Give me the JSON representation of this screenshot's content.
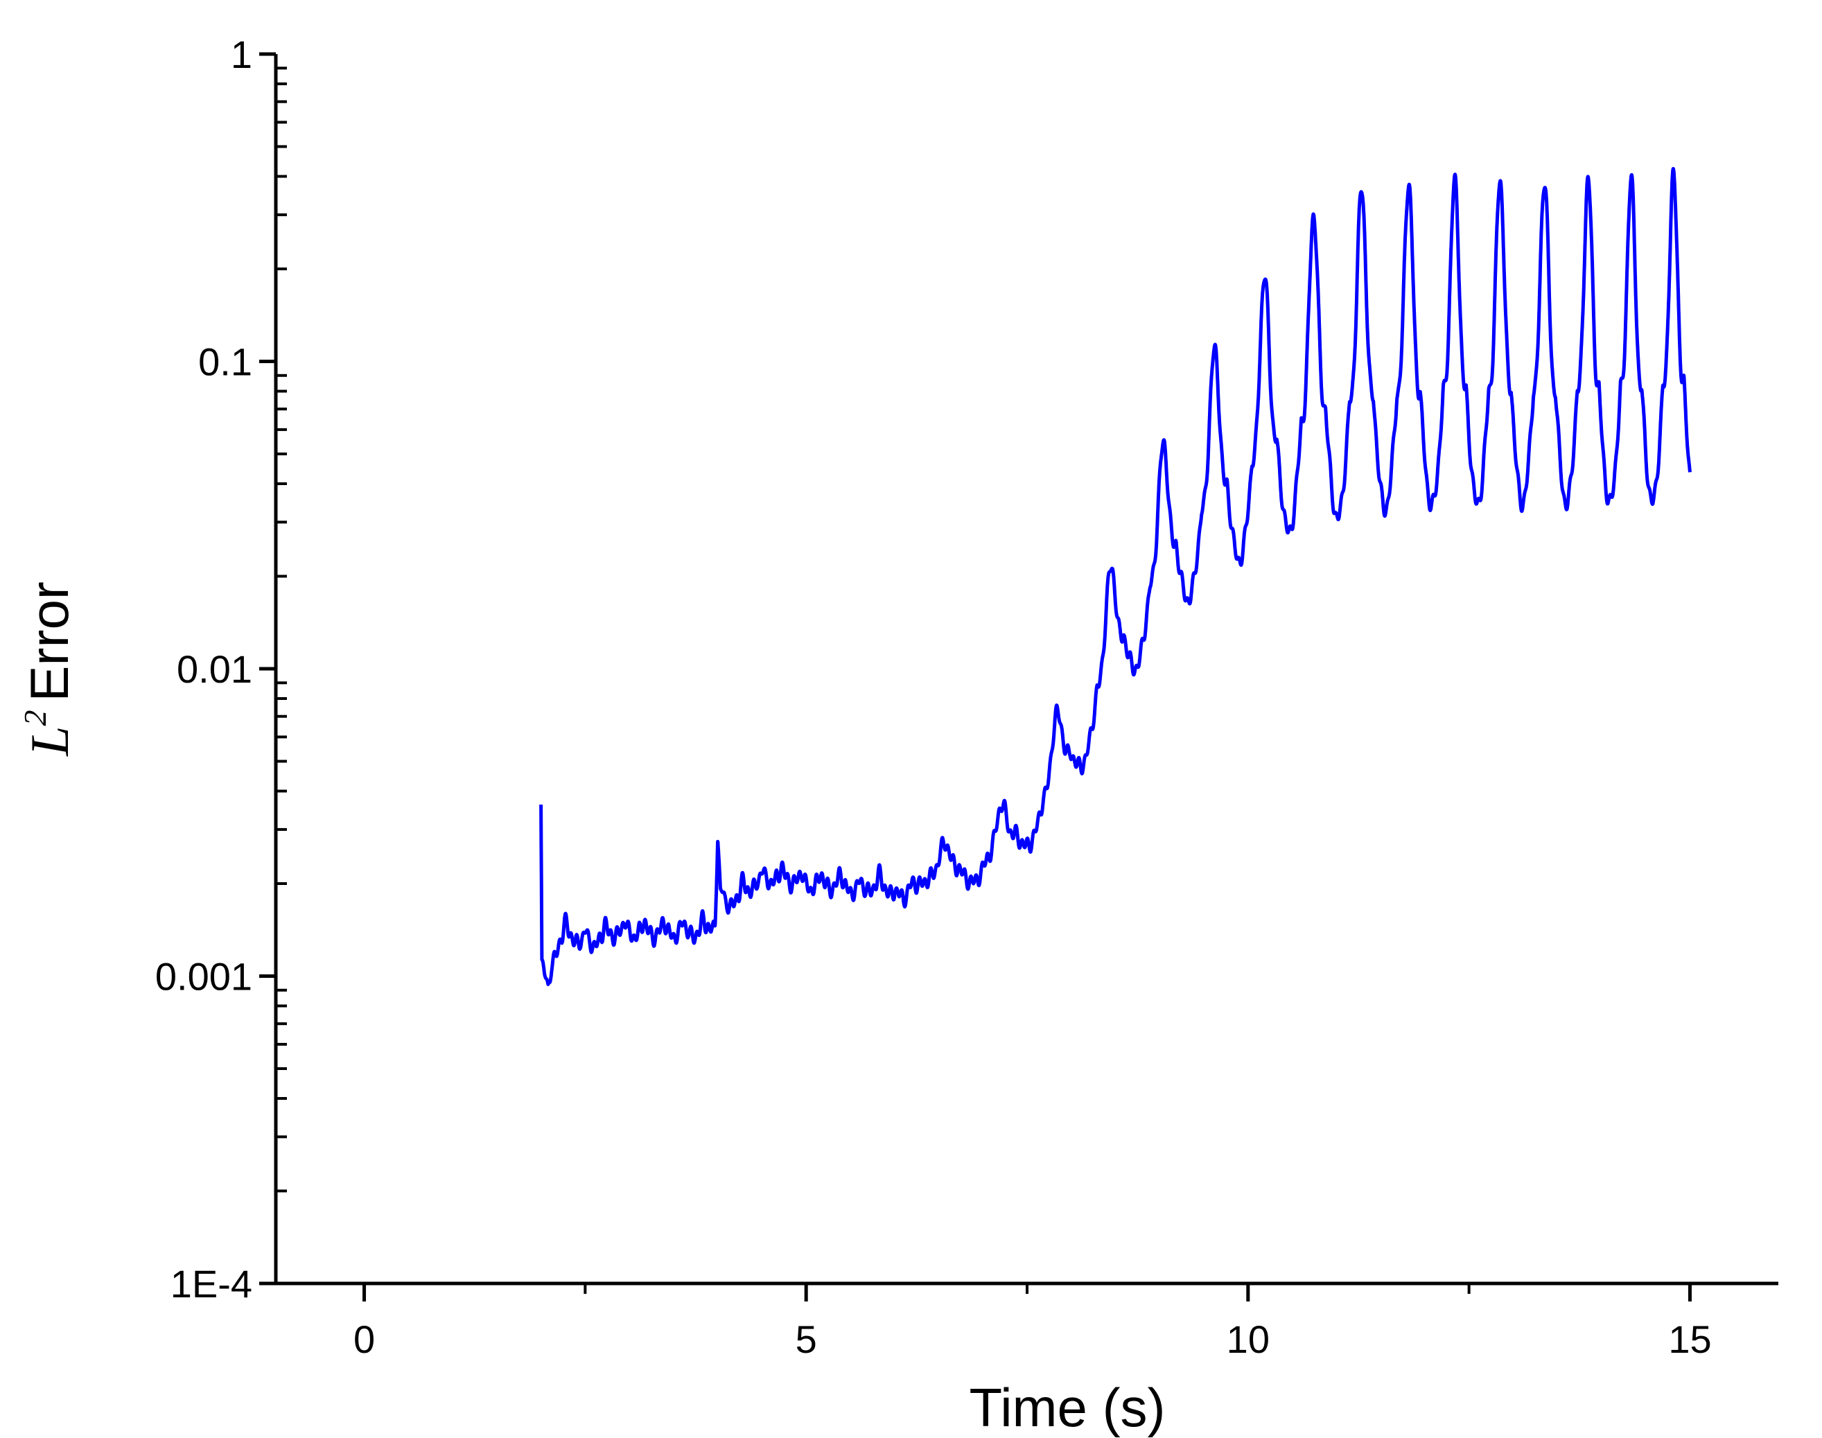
{
  "chart_data": {
    "type": "line",
    "title": "",
    "xlabel": "Time (s)",
    "ylabel_symbol": "L",
    "ylabel_superscript": "2",
    "ylabel": "Error",
    "x_ticks": [
      0,
      5,
      10,
      15
    ],
    "y_ticks": [
      1,
      0.1,
      0.01,
      0.001,
      0.0001
    ],
    "y_tick_labels": [
      "1",
      "0.1",
      "0.01",
      "0.001",
      "1E-4"
    ],
    "xlim": [
      -1,
      16
    ],
    "ylim": [
      0.0001,
      1
    ],
    "yscale": "log",
    "grid": false,
    "legend": "none",
    "series": [
      {
        "color": "#0000ff",
        "x": [
          2.0,
          2.01,
          2.04,
          2.08,
          2.12,
          2.2,
          2.3,
          2.45,
          2.6,
          2.8,
          3.0,
          3.2,
          3.4,
          3.6,
          3.8,
          3.97,
          4.0,
          4.03,
          4.08,
          4.2,
          4.4,
          4.6,
          4.8,
          5.0,
          5.2,
          5.4,
          5.6,
          5.8,
          6.0,
          6.1,
          6.2,
          6.4,
          6.6,
          6.8,
          7.0,
          7.2,
          7.4,
          7.6,
          7.8,
          8.0,
          8.2,
          8.4,
          8.6,
          8.8,
          9.0,
          9.2,
          9.4,
          9.6,
          9.8,
          10.0,
          10.2,
          10.4,
          10.6,
          10.8,
          11.0,
          11.5,
          12.0,
          12.5,
          13.0,
          13.5,
          14.0,
          14.5,
          15.0
        ],
        "y": [
          0.0037,
          0.0011,
          0.00095,
          0.00088,
          0.0011,
          0.0013,
          0.0014,
          0.0013,
          0.0013,
          0.0014,
          0.0014,
          0.0014,
          0.0014,
          0.0014,
          0.0014,
          0.0015,
          0.0029,
          0.0018,
          0.0017,
          0.0018,
          0.002,
          0.0021,
          0.0021,
          0.002,
          0.002,
          0.002,
          0.0019,
          0.002,
          0.0019,
          0.0018,
          0.0022,
          0.0021,
          0.0022,
          0.0023,
          0.0024,
          0.0026,
          0.003,
          0.0035,
          0.0042,
          0.0055,
          0.0075,
          0.01,
          0.013,
          0.017,
          0.021,
          0.026,
          0.031,
          0.036,
          0.041,
          0.046,
          0.052,
          0.058,
          0.064,
          0.069,
          0.073,
          0.078,
          0.08,
          0.081,
          0.082,
          0.081,
          0.082,
          0.082,
          0.085
        ]
      }
    ]
  }
}
